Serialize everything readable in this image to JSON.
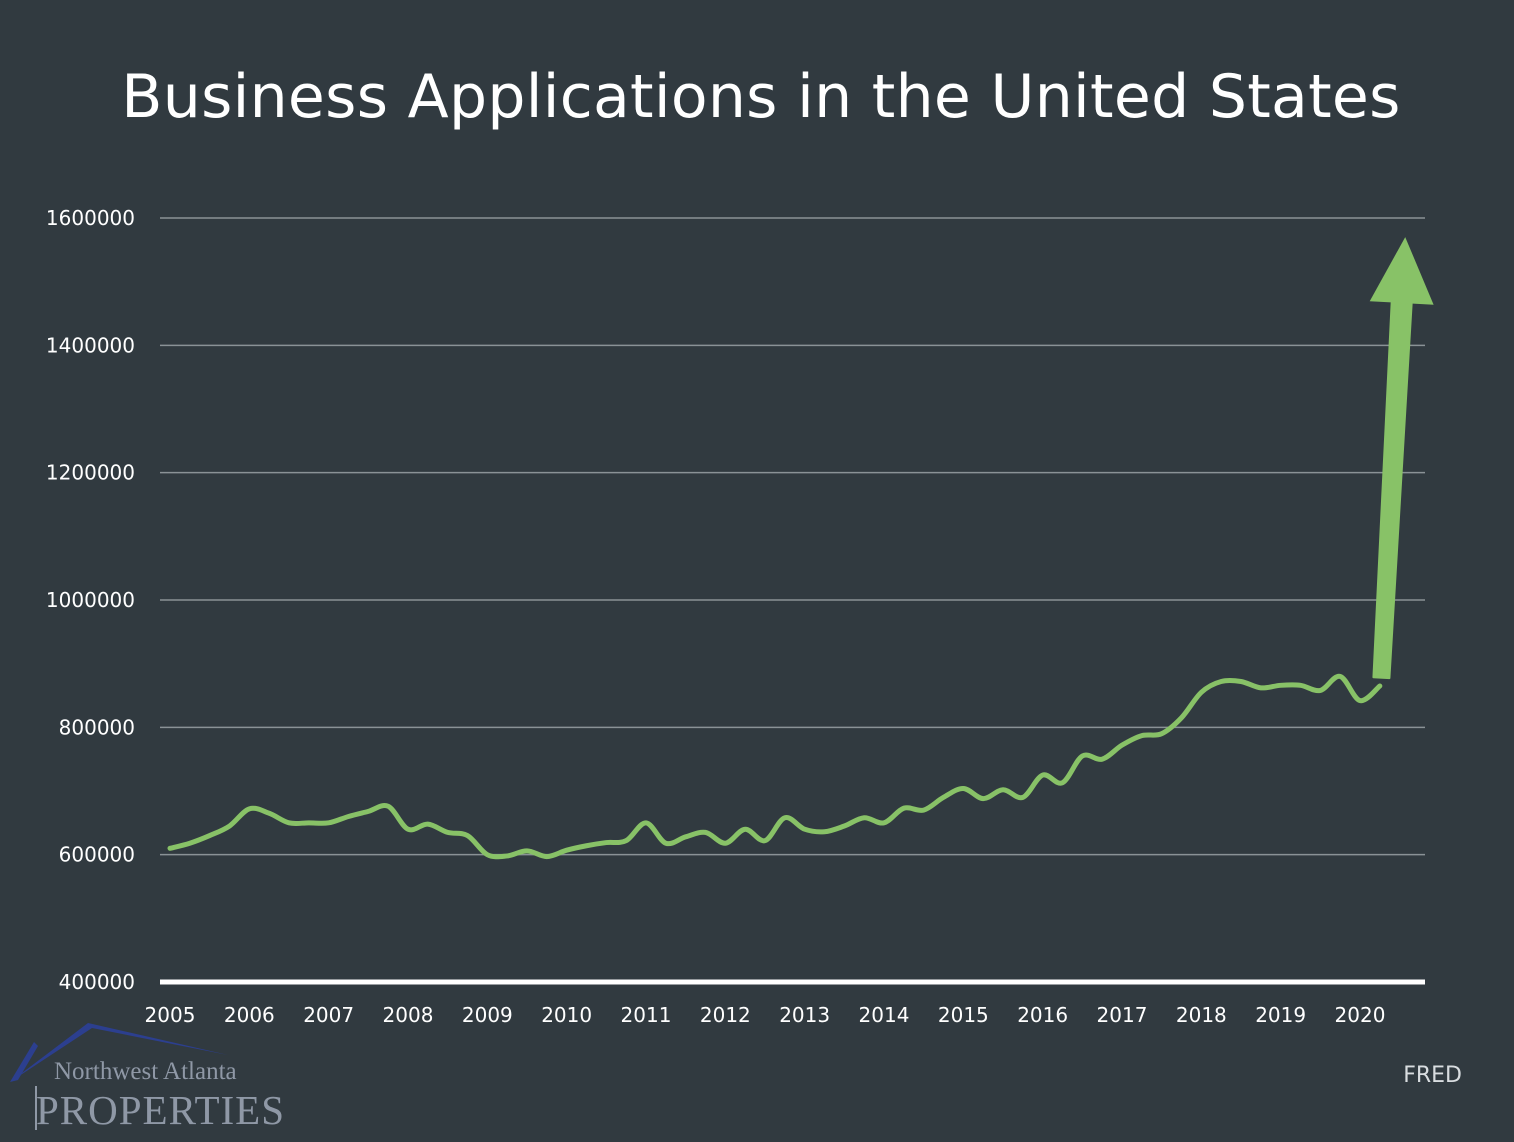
{
  "chart_data": {
    "type": "line",
    "title": "Business Applications in the United States",
    "xlabel": "",
    "ylabel": "",
    "ylim": [
      400000,
      1600000
    ],
    "yticks": [
      "400000",
      "600000",
      "800000",
      "1000000",
      "1200000",
      "1400000",
      "1600000"
    ],
    "xlim": [
      2005,
      2021
    ],
    "xticks": [
      "2005",
      "2006",
      "2007",
      "2008",
      "2009",
      "2010",
      "2011",
      "2012",
      "2013",
      "2014",
      "2015",
      "2016",
      "2017",
      "2018",
      "2019",
      "2020"
    ],
    "grid": true,
    "series": [
      {
        "name": "Business Applications",
        "color": "#88c267",
        "x": [
          2005.0,
          2005.25,
          2005.5,
          2005.75,
          2006.0,
          2006.25,
          2006.5,
          2006.75,
          2007.0,
          2007.25,
          2007.5,
          2007.75,
          2008.0,
          2008.25,
          2008.5,
          2008.75,
          2009.0,
          2009.25,
          2009.5,
          2009.75,
          2010.0,
          2010.25,
          2010.5,
          2010.75,
          2011.0,
          2011.25,
          2011.5,
          2011.75,
          2012.0,
          2012.25,
          2012.5,
          2012.75,
          2013.0,
          2013.25,
          2013.5,
          2013.75,
          2014.0,
          2014.25,
          2014.5,
          2014.75,
          2015.0,
          2015.25,
          2015.5,
          2015.75,
          2016.0,
          2016.25,
          2016.5,
          2016.75,
          2017.0,
          2017.25,
          2017.5,
          2017.75,
          2018.0,
          2018.25,
          2018.5,
          2018.75,
          2019.0,
          2019.25,
          2019.5,
          2019.75,
          2020.0,
          2020.25
        ],
        "values": [
          610000,
          618000,
          630000,
          645000,
          672000,
          665000,
          650000,
          650000,
          650000,
          660000,
          668000,
          676000,
          640000,
          648000,
          635000,
          630000,
          600000,
          598000,
          606000,
          597000,
          607000,
          614000,
          619000,
          622000,
          650000,
          618000,
          628000,
          635000,
          618000,
          640000,
          622000,
          658000,
          640000,
          636000,
          645000,
          658000,
          650000,
          673000,
          670000,
          690000,
          704000,
          688000,
          702000,
          690000,
          725000,
          713000,
          755000,
          750000,
          772000,
          787000,
          790000,
          815000,
          855000,
          872000,
          872000,
          862000,
          866000,
          866000,
          858000,
          880000,
          842000,
          865000
        ]
      }
    ],
    "annotation": {
      "type": "arrow",
      "from": {
        "x": 2020.27,
        "y": 878000
      },
      "to": {
        "x": 2020.57,
        "y": 1570000
      },
      "color": "#88c267"
    },
    "source": "FRED"
  },
  "logo": {
    "line1": "Northwest Atlanta",
    "line2": "PROPERTIES"
  }
}
